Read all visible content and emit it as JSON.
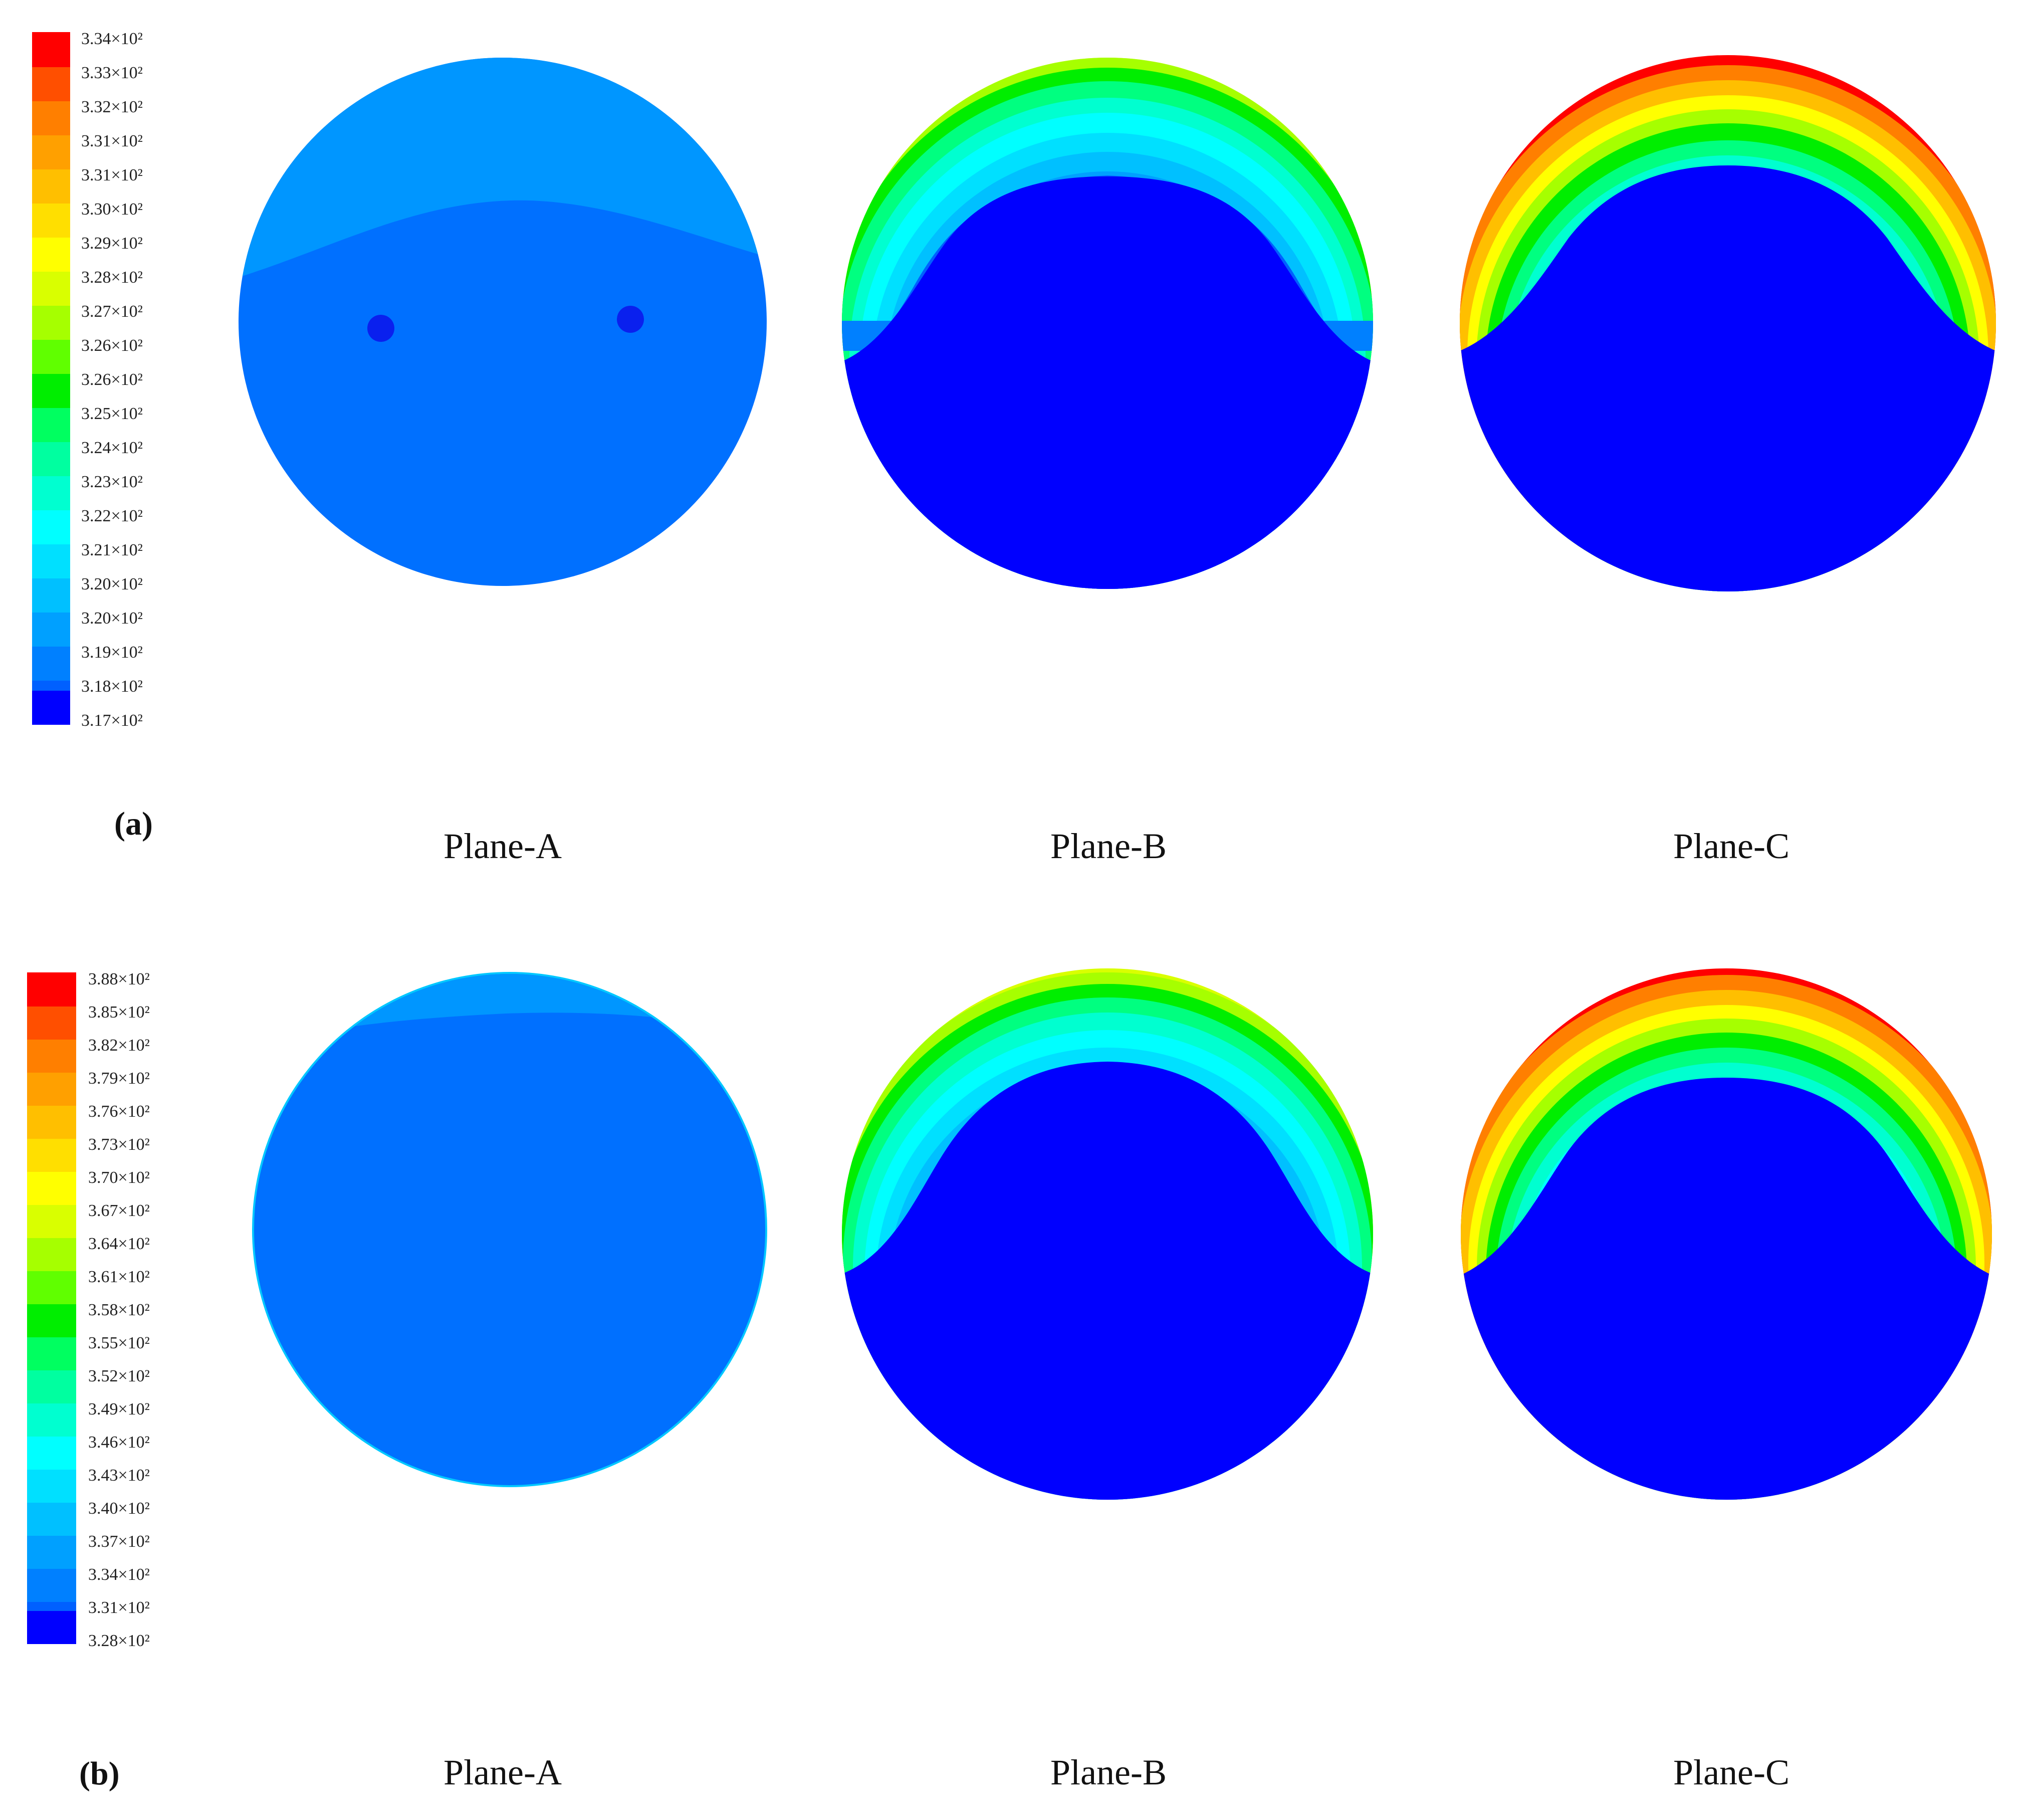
{
  "panels": [
    {
      "id": "a",
      "panel_label": "(a)",
      "legend": {
        "values": [
          "3.34×10²",
          "3.33×10²",
          "3.32×10²",
          "3.31×10²",
          "3.31×10²",
          "3.30×10²",
          "3.29×10²",
          "3.28×10²",
          "3.27×10²",
          "3.26×10²",
          "3.26×10²",
          "3.25×10²",
          "3.24×10²",
          "3.23×10²",
          "3.22×10²",
          "3.21×10²",
          "3.20×10²",
          "3.20×10²",
          "3.19×10²",
          "3.18×10²",
          "3.17×10²"
        ]
      },
      "planes": [
        {
          "name": "Plane-A",
          "field": "uniform",
          "probe_points": 2
        },
        {
          "name": "Plane-B",
          "field": "arch",
          "peak_level": "yellow"
        },
        {
          "name": "Plane-C",
          "field": "arch",
          "peak_level": "red"
        }
      ]
    },
    {
      "id": "b",
      "panel_label": "(b)",
      "legend": {
        "values": [
          "3.88×10²",
          "3.85×10²",
          "3.82×10²",
          "3.79×10²",
          "3.76×10²",
          "3.73×10²",
          "3.70×10²",
          "3.67×10²",
          "3.64×10²",
          "3.61×10²",
          "3.58×10²",
          "3.55×10²",
          "3.52×10²",
          "3.49×10²",
          "3.46×10²",
          "3.43×10²",
          "3.40×10²",
          "3.37×10²",
          "3.34×10²",
          "3.31×10²",
          "3.28×10²"
        ]
      },
      "planes": [
        {
          "name": "Plane-A",
          "field": "uniform",
          "probe_points": 0
        },
        {
          "name": "Plane-B",
          "field": "arch",
          "peak_level": "green-yellow"
        },
        {
          "name": "Plane-C",
          "field": "arch",
          "peak_level": "red"
        }
      ]
    }
  ],
  "colormap": [
    "#ff0000",
    "#ff4f00",
    "#ff7f00",
    "#ffa000",
    "#ffbf00",
    "#ffdf00",
    "#ffff00",
    "#d9ff00",
    "#a6ff00",
    "#60ff00",
    "#00ee00",
    "#00ff60",
    "#00ffa0",
    "#00ffd0",
    "#00ffff",
    "#00e0ff",
    "#00c0ff",
    "#00a0ff",
    "#0080ff",
    "#0060ff",
    "#0000ff"
  ]
}
